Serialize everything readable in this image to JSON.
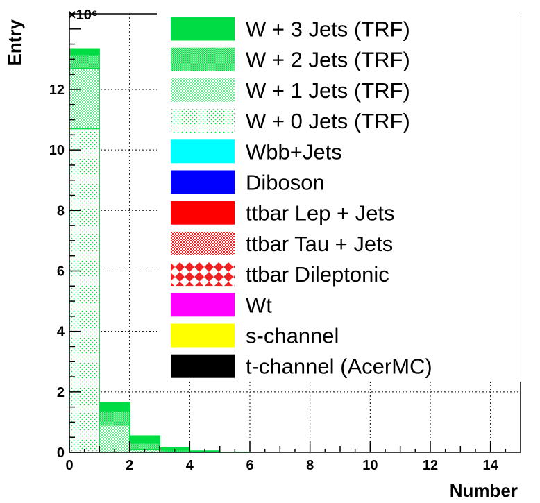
{
  "chart_data": {
    "type": "bar",
    "stacked": true,
    "xlabel": "Number",
    "ylabel": "Entry",
    "y_multiplier_label": "×10⁶",
    "xlim": [
      0,
      15
    ],
    "ylim": [
      0,
      14.5
    ],
    "grid": true,
    "legend_position": "top-right",
    "x_ticks": [
      0,
      2,
      4,
      6,
      8,
      10,
      12,
      14
    ],
    "y_ticks": [
      0,
      2,
      4,
      6,
      8,
      10,
      12
    ],
    "bin_edges": [
      0,
      1,
      2,
      3,
      4,
      5,
      6,
      7,
      8,
      9,
      10,
      11,
      12,
      13,
      14,
      15
    ],
    "series": [
      {
        "name": "W + 0 Jets (TRF)",
        "color": "#00dd44",
        "pattern": "sparse-dots",
        "values": [
          10.7,
          0,
          0,
          0,
          0,
          0,
          0,
          0,
          0,
          0,
          0,
          0,
          0,
          0,
          0
        ]
      },
      {
        "name": "W + 1 Jets (TRF)",
        "color": "#00dd44",
        "pattern": "dots",
        "values": [
          2.0,
          0.9,
          0.1,
          0.02,
          0,
          0,
          0,
          0,
          0,
          0,
          0,
          0,
          0,
          0,
          0
        ]
      },
      {
        "name": "W + 2 Jets (TRF)",
        "color": "#00dd44",
        "pattern": "dense-dots",
        "values": [
          0.45,
          0.45,
          0.2,
          0.05,
          0.01,
          0,
          0,
          0,
          0,
          0,
          0,
          0,
          0,
          0,
          0
        ]
      },
      {
        "name": "W + 3 Jets (TRF)",
        "color": "#00dd44",
        "pattern": "solid",
        "values": [
          0.2,
          0.3,
          0.25,
          0.1,
          0.04,
          0.01,
          0,
          0,
          0,
          0,
          0,
          0,
          0,
          0,
          0
        ]
      },
      {
        "name": "Wbb+Jets",
        "color": "#00ffff",
        "pattern": "solid",
        "values": [
          0,
          0,
          0,
          0,
          0,
          0,
          0,
          0,
          0,
          0,
          0,
          0,
          0,
          0,
          0
        ]
      },
      {
        "name": "Diboson",
        "color": "#0000ff",
        "pattern": "solid",
        "values": [
          0,
          0,
          0,
          0,
          0,
          0,
          0,
          0,
          0,
          0,
          0,
          0,
          0,
          0,
          0
        ]
      },
      {
        "name": "ttbar Lep + Jets",
        "color": "#ff0000",
        "pattern": "solid",
        "values": [
          0,
          0,
          0,
          0,
          0,
          0,
          0,
          0,
          0,
          0,
          0,
          0,
          0,
          0,
          0
        ]
      },
      {
        "name": "ttbar Tau + Jets",
        "color": "#ee2222",
        "pattern": "checker",
        "values": [
          0,
          0,
          0,
          0,
          0,
          0,
          0,
          0,
          0,
          0,
          0,
          0,
          0,
          0,
          0
        ]
      },
      {
        "name": "ttbar Dileptonic",
        "color": "#ee2222",
        "pattern": "diamond",
        "values": [
          0,
          0,
          0,
          0,
          0,
          0,
          0,
          0,
          0,
          0,
          0,
          0,
          0,
          0,
          0
        ]
      },
      {
        "name": "Wt",
        "color": "#ff00ff",
        "pattern": "solid",
        "values": [
          0,
          0,
          0,
          0,
          0,
          0,
          0,
          0,
          0,
          0,
          0,
          0,
          0,
          0,
          0
        ]
      },
      {
        "name": "s-channel",
        "color": "#ffff00",
        "pattern": "solid",
        "values": [
          0,
          0,
          0,
          0,
          0,
          0,
          0,
          0,
          0,
          0,
          0,
          0,
          0,
          0,
          0
        ]
      },
      {
        "name": "t-channel (AcerMC)",
        "color": "#000000",
        "pattern": "solid",
        "values": [
          0,
          0,
          0,
          0,
          0,
          0,
          0,
          0,
          0,
          0,
          0,
          0,
          0,
          0,
          0
        ]
      }
    ],
    "legend_order": [
      "W + 3 Jets (TRF)",
      "W + 2 Jets (TRF)",
      "W + 1 Jets (TRF)",
      "W + 0 Jets (TRF)",
      "Wbb+Jets",
      "Diboson",
      "ttbar Lep + Jets",
      "ttbar Tau + Jets",
      "ttbar Dileptonic",
      "Wt",
      "s-channel",
      "t-channel (AcerMC)"
    ]
  }
}
